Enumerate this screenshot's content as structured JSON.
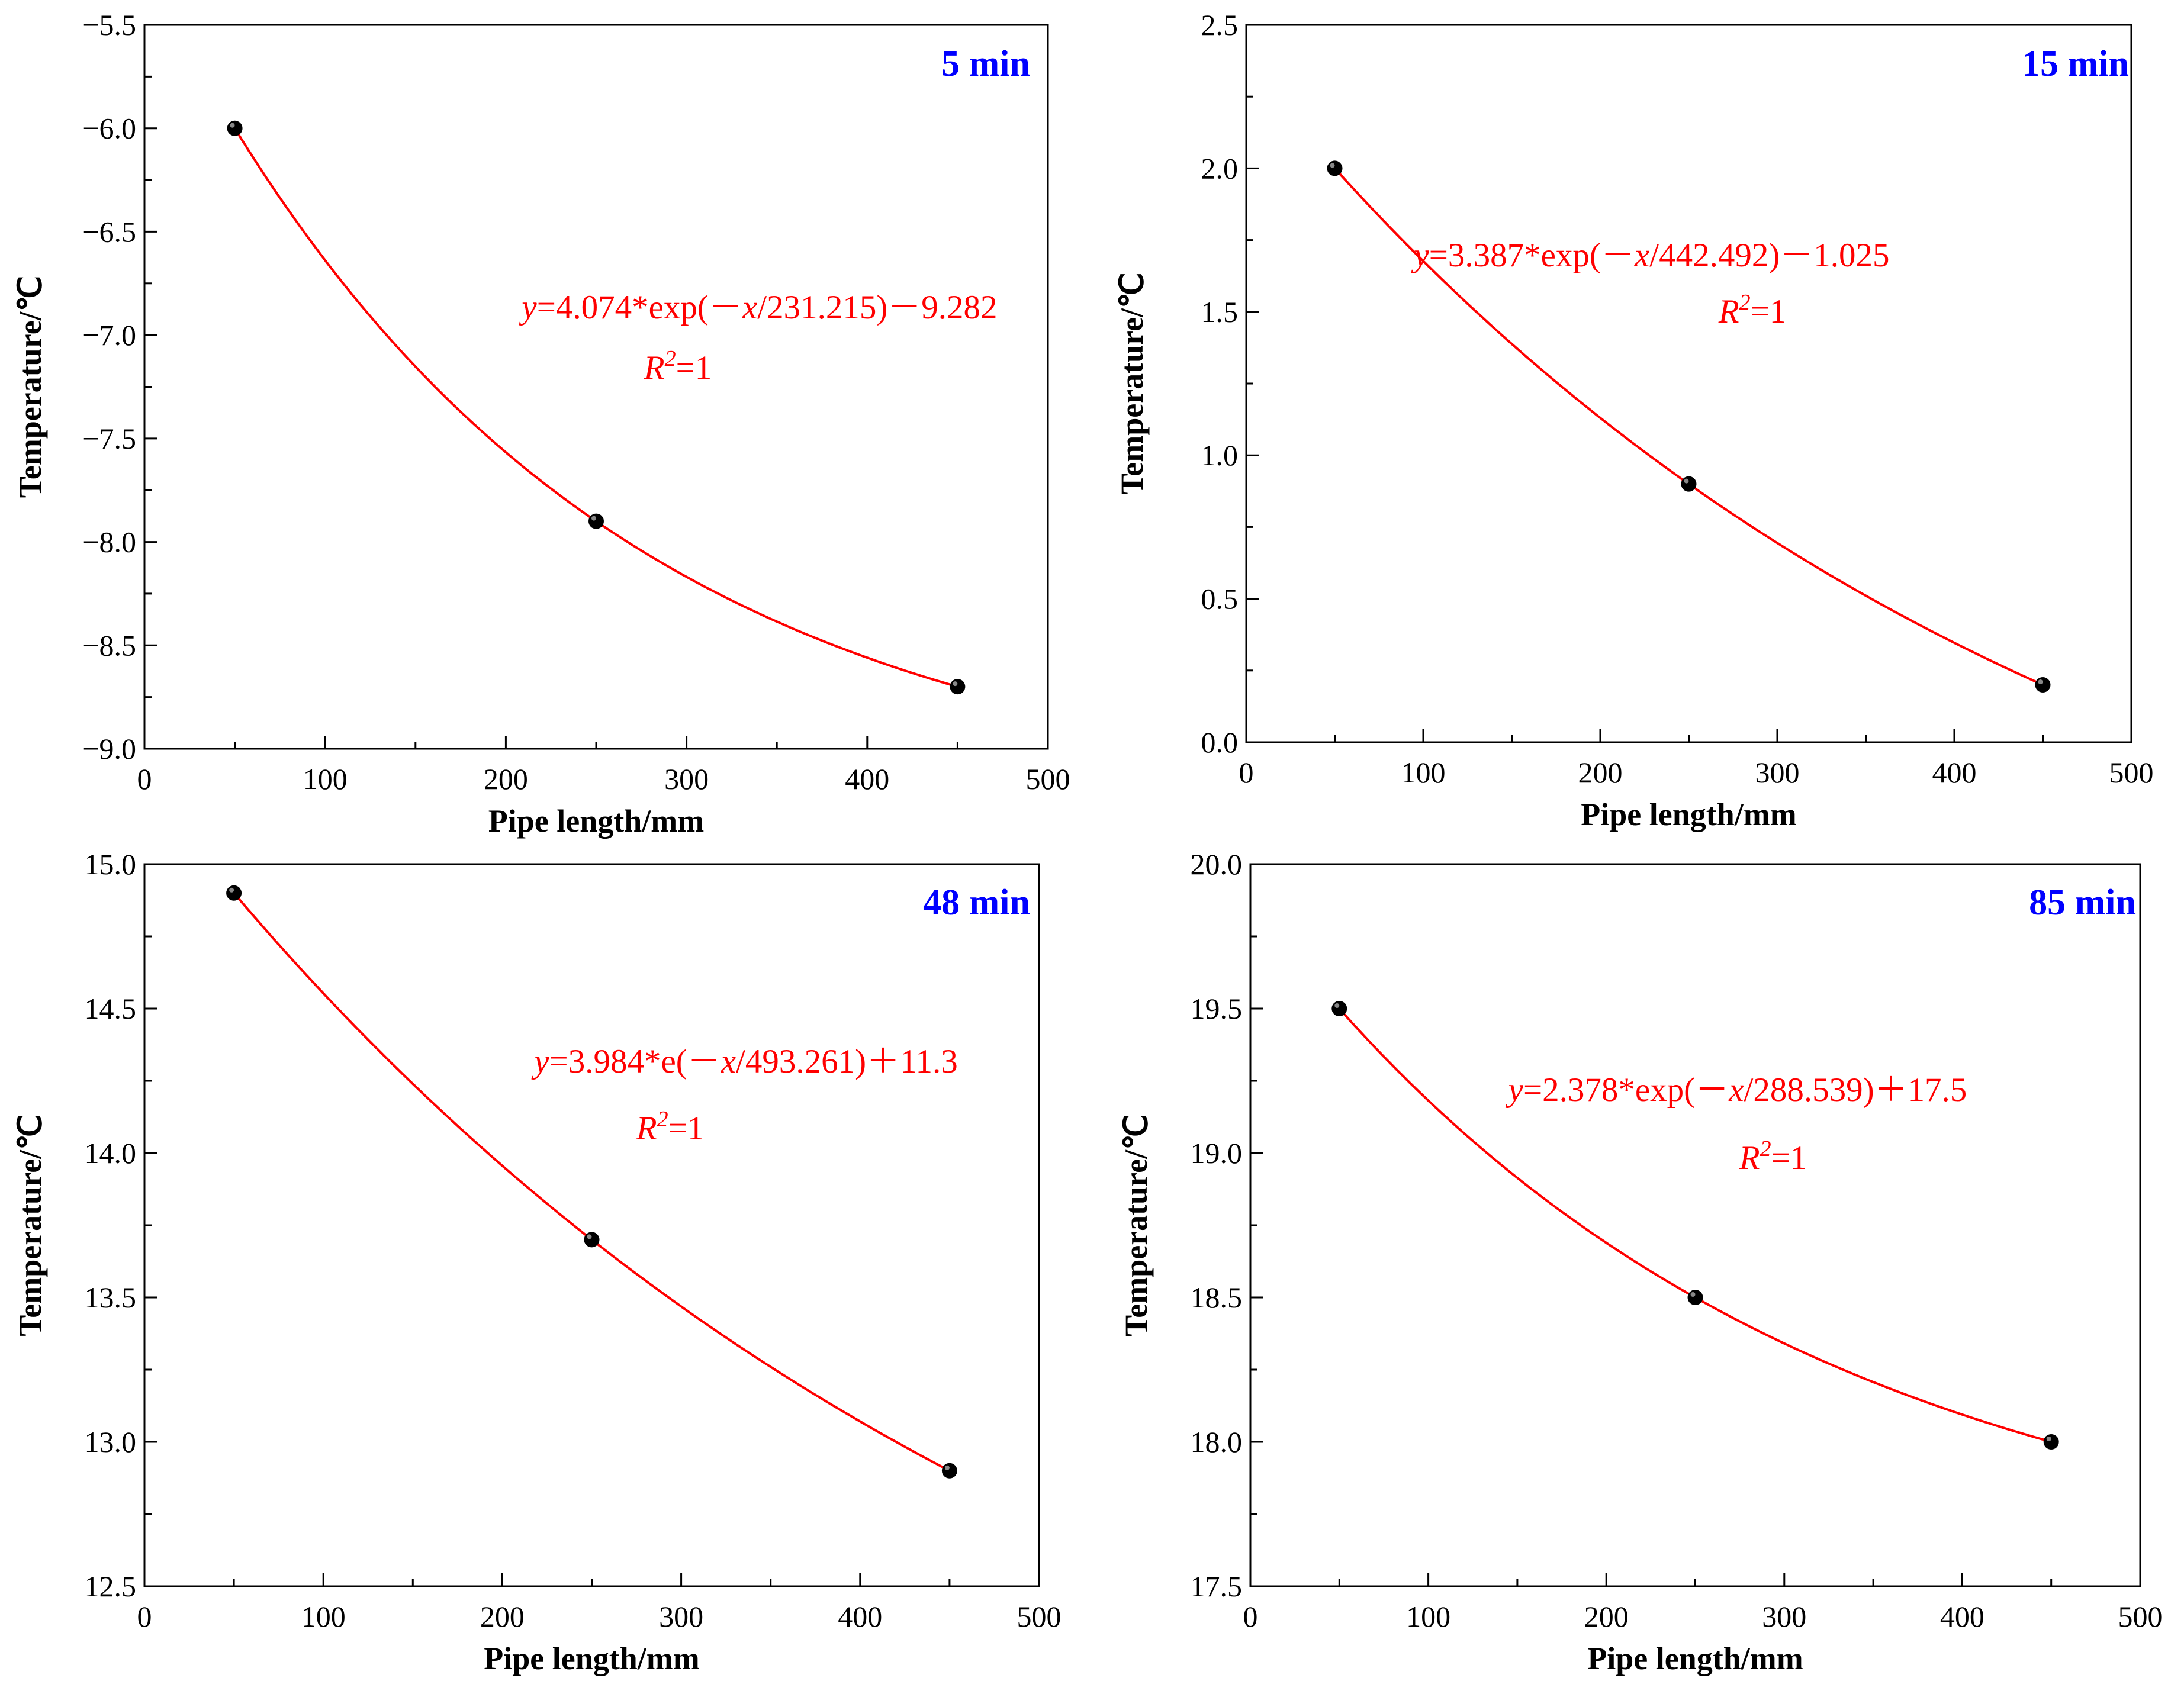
{
  "colors": {
    "fit_line": "#ff0000",
    "marker": "#000000",
    "panel_label": "#0000ff",
    "equation": "#ff0000"
  },
  "chart_data": [
    {
      "type": "scatter",
      "panel_label": "5 min",
      "xlabel": "Pipe length/mm",
      "ylabel": "Temperature/℃",
      "xlim": [
        0,
        500
      ],
      "ylim": [
        -9.0,
        -5.5
      ],
      "xticks": [
        0,
        100,
        200,
        300,
        400,
        500
      ],
      "xtick_labels": [
        "0",
        "100",
        "200",
        "300",
        "400",
        "500"
      ],
      "yticks": [
        -9.0,
        -8.5,
        -8.0,
        -7.5,
        -7.0,
        -6.5,
        -6.0,
        -5.5
      ],
      "ytick_labels": [
        "−9.0",
        "−8.5",
        "−8.0",
        "−7.5",
        "−7.0",
        "−6.5",
        "−6.0",
        "−5.5"
      ],
      "x": [
        50,
        250,
        450
      ],
      "y": [
        -6.0,
        -7.9,
        -8.7
      ],
      "fit": {
        "A": 4.074,
        "t": 231.215,
        "y0": -9.282
      },
      "equation": {
        "var": "y",
        "rest": "=4.074*exp(",
        "minus": "－",
        "var2": "x",
        "tail": "/231.215)－9.282"
      },
      "r2": {
        "var": "R",
        "exp": "2",
        "rest": "=1"
      }
    },
    {
      "type": "scatter",
      "panel_label": "15 min",
      "xlabel": "Pipe length/mm",
      "ylabel": "Temperature/℃",
      "xlim": [
        0,
        500
      ],
      "ylim": [
        0.0,
        2.5
      ],
      "xticks": [
        0,
        100,
        200,
        300,
        400,
        500
      ],
      "xtick_labels": [
        "0",
        "100",
        "200",
        "300",
        "400",
        "500"
      ],
      "yticks": [
        0.0,
        0.5,
        1.0,
        1.5,
        2.0,
        2.5
      ],
      "ytick_labels": [
        "0.0",
        "0.5",
        "1.0",
        "1.5",
        "2.0",
        "2.5"
      ],
      "x": [
        50,
        250,
        450
      ],
      "y": [
        2.0,
        0.9,
        0.2
      ],
      "fit": {
        "A": 3.387,
        "t": 442.492,
        "y0": -1.025
      },
      "equation": {
        "var": "y",
        "rest": "=3.387*exp(",
        "minus": "－",
        "var2": "x",
        "tail": "/442.492)－1.025"
      },
      "r2": {
        "var": "R",
        "exp": "2",
        "rest": "=1"
      }
    },
    {
      "type": "scatter",
      "panel_label": "48 min",
      "xlabel": "Pipe length/mm",
      "ylabel": "Temperature/℃",
      "xlim": [
        0,
        500
      ],
      "ylim": [
        12.5,
        15.0
      ],
      "xticks": [
        0,
        100,
        200,
        300,
        400,
        500
      ],
      "xtick_labels": [
        "0",
        "100",
        "200",
        "300",
        "400",
        "500"
      ],
      "yticks": [
        12.5,
        13.0,
        13.5,
        14.0,
        14.5,
        15.0
      ],
      "ytick_labels": [
        "12.5",
        "13.0",
        "13.5",
        "14.0",
        "14.5",
        "15.0"
      ],
      "x": [
        50,
        250,
        450
      ],
      "y": [
        14.9,
        13.7,
        12.9
      ],
      "fit": {
        "A": 3.984,
        "t": 493.261,
        "y0": 11.3
      },
      "equation": {
        "var": "y",
        "rest": "=3.984*e(",
        "minus": "－",
        "var2": "x",
        "tail": "/493.261)＋11.3"
      },
      "r2": {
        "var": "R",
        "exp": "2",
        "rest": "=1"
      }
    },
    {
      "type": "scatter",
      "panel_label": "85 min",
      "xlabel": "Pipe length/mm",
      "ylabel": "Temperature/℃",
      "xlim": [
        0,
        500
      ],
      "ylim": [
        17.5,
        20.0
      ],
      "xticks": [
        0,
        100,
        200,
        300,
        400,
        500
      ],
      "xtick_labels": [
        "0",
        "100",
        "200",
        "300",
        "400",
        "500"
      ],
      "yticks": [
        17.5,
        18.0,
        18.5,
        19.0,
        19.5,
        20.0
      ],
      "ytick_labels": [
        "17.5",
        "18.0",
        "18.5",
        "19.0",
        "19.5",
        "20.0"
      ],
      "x": [
        50,
        250,
        450
      ],
      "y": [
        19.5,
        18.5,
        18.0
      ],
      "fit": {
        "A": 2.378,
        "t": 288.539,
        "y0": 17.5
      },
      "equation": {
        "var": "y",
        "rest": "=2.378*exp(",
        "minus": "－",
        "var2": "x",
        "tail": "/288.539)＋17.5"
      },
      "r2": {
        "var": "R",
        "exp": "2",
        "rest": "=1"
      }
    }
  ]
}
